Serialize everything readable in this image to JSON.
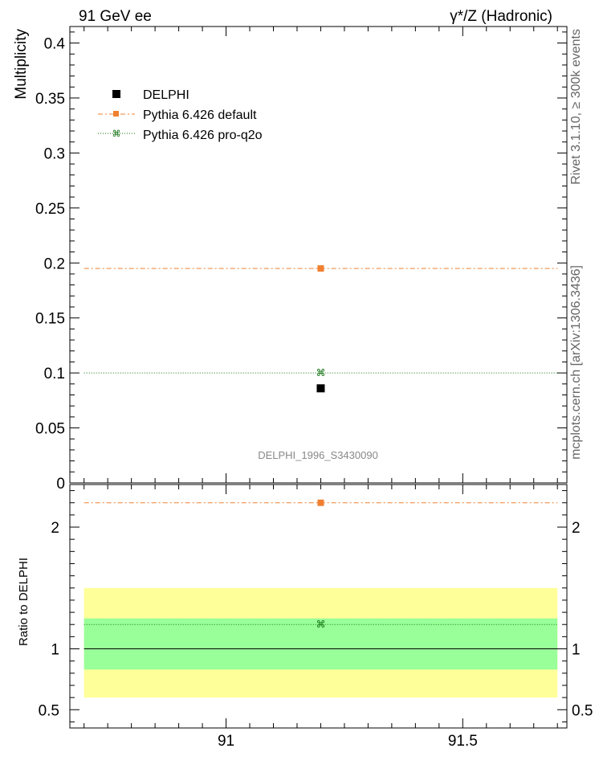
{
  "header": {
    "left_title": "91 GeV ee",
    "right_title": "γ*/Z (Hadronic)"
  },
  "side_labels": {
    "rivet": "Rivet 3.1.10, ≥ 300k events",
    "source": "mcplots.cern.ch [arXiv:1306.3436]"
  },
  "analysis_label": "DELPHI_1996_S3430090",
  "colors": {
    "data": "#000000",
    "default": "#f08030",
    "proq2o": "#107010",
    "band_inner": "#99ff99",
    "band_outer": "#ffff99"
  },
  "legend": {
    "placement": "top-left",
    "entries": [
      "DELPHI",
      "Pythia 6.426 default",
      "Pythia 6.426 pro-q2o"
    ]
  },
  "chart_data": [
    {
      "type": "scatter",
      "ylabel": "Multiplicity",
      "xlim": [
        90.67,
        91.72
      ],
      "ylim": [
        0,
        0.415
      ],
      "yticks": [
        0,
        0.05,
        0.1,
        0.15,
        0.2,
        0.25,
        0.3,
        0.35,
        0.4
      ],
      "ytick_labels": [
        "0",
        "0.05",
        "0.1",
        "0.15",
        "0.2",
        "0.25",
        "0.3",
        "0.35",
        "0.4"
      ],
      "x_range": [
        90.7,
        91.7
      ],
      "series": [
        {
          "name": "DELPHI",
          "x": 91.2,
          "y": 0.086
        },
        {
          "name": "Pythia 6.426 default",
          "x": 91.2,
          "y": 0.195
        },
        {
          "name": "Pythia 6.426 pro-q2o",
          "x": 91.2,
          "y": 0.1
        }
      ]
    },
    {
      "type": "scatter",
      "ylabel": "Ratio to DELPHI",
      "xlim": [
        90.67,
        91.72
      ],
      "ylim": [
        0.35,
        2.35
      ],
      "yticks": [
        0.5,
        1,
        2
      ],
      "ytick_labels": [
        "0.5",
        "1",
        "2"
      ],
      "xticks": [
        91,
        91.5
      ],
      "xtick_labels": [
        "91",
        "91.5"
      ],
      "band_inner": [
        0.83,
        1.25
      ],
      "band_outer": [
        0.6,
        1.5
      ],
      "series": [
        {
          "name": "Pythia 6.426 default",
          "x": 91.2,
          "y": 2.2
        },
        {
          "name": "Pythia 6.426 pro-q2o",
          "x": 91.2,
          "y": 1.2
        }
      ]
    }
  ]
}
